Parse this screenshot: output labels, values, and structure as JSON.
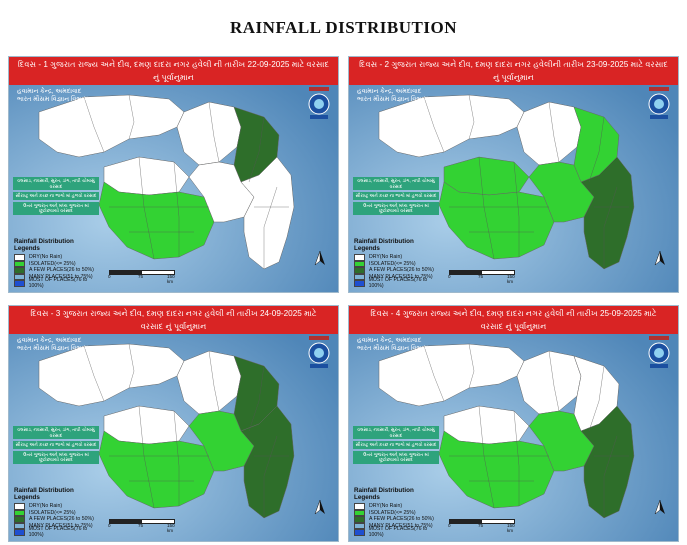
{
  "title": "RAINFALL DISTRIBUTION",
  "colors": {
    "dry": "#ffffff",
    "isolated": "#33d233",
    "a_few_places": "#2e6e2a",
    "many_places": "#7fb3d5",
    "most_of_places": "#1f4fd0",
    "header": "#d92424",
    "label_box": "#2ea37c"
  },
  "common": {
    "org_line1": "હવામાન કેન્દ્ર, અમદાવાદ",
    "org_line2": "ભારત મૌસમ વિજ્ઞાન વિભાગ",
    "label_1": "વલસાડ, નવસારી, સુરત, ડાંગ, તાપી ચોમાસું વરસાદ",
    "label_2": "સૌરાષ્ટ્ર અને કચ્છ ના ભાગો માં હળવો વરસાદ",
    "label_3": "ઉત્તર ગુજરાત અને મધ્ય ગુજરાત માં છૂટોછવાયો વરસાદ",
    "legend_title": "Rainfall Distribution Legends",
    "legend_items": [
      {
        "label": "DRY(No Rain)",
        "color": "#ffffff"
      },
      {
        "label": "ISOLATED(<= 25%)",
        "color": "#33d233"
      },
      {
        "label": "A FEW PLACES(26 to 50%)",
        "color": "#2e6e2a"
      },
      {
        "label": "MANY PLACES(51 to 75%)",
        "color": "#7fb3d5"
      },
      {
        "label": "MOST OF PLACES(76 to 100%)",
        "color": "#1f4fd0"
      }
    ],
    "scale_0": "0",
    "scale_75": "75",
    "scale_150": "150 km",
    "north": "N"
  },
  "panels": [
    {
      "header_line1": "દિવસ - 1 ગુજરાત રાજ્ય અને દીવ, દમણ દાદરા નગર હવેલી ની તારીખ 22-09-2025 માટે વરસાદ",
      "header_line2": "નું પૂર્વાનુમાન",
      "date": "22-09-2025",
      "day": 1,
      "regions": {
        "kutch": "dry",
        "saurashtra_north": "dry",
        "saurashtra_south": "isolated",
        "north_gujarat": "dry",
        "northeast": "a_few_places",
        "central": "dry",
        "south": "dry"
      }
    },
    {
      "header_line1": "દિવસ - 2 ગુજરાત રાજ્ય અને દીવ, દમણ દાદરા નગર હવેલીની તારીખ 23-09-2025 માટે વરસાદ",
      "header_line2": "નું પૂર્વાનુમાન",
      "date": "23-09-2025",
      "day": 2,
      "regions": {
        "kutch": "dry",
        "saurashtra_north": "isolated",
        "saurashtra_south": "isolated",
        "north_gujarat": "dry",
        "northeast": "isolated",
        "central": "isolated",
        "south": "a_few_places"
      }
    },
    {
      "header_line1": "દિવસ - 3 ગુજરાત રાજ્ય અને દીવ, દમણ દાદરા નગર હવેલી ની તારીખ 24-09-2025 માટે",
      "header_line2": "વરસાદ નું પૂર્વાનુમાન",
      "date": "24-09-2025",
      "day": 3,
      "regions": {
        "kutch": "dry",
        "saurashtra_north": "dry",
        "saurashtra_south": "isolated",
        "north_gujarat": "dry",
        "northeast": "a_few_places",
        "central": "isolated",
        "south": "a_few_places"
      }
    },
    {
      "header_line1": "દિવસ - 4 ગુજરાત રાજ્ય અને દીવ, દમણ દાદરા નગર હવેલી ની તારીખ 25-09-2025 માટે",
      "header_line2": "વરસાદ નું પૂર્વાનુમાન",
      "date": "25-09-2025",
      "day": 4,
      "regions": {
        "kutch": "dry",
        "saurashtra_north": "dry",
        "saurashtra_south": "isolated",
        "north_gujarat": "dry",
        "northeast": "dry",
        "central": "isolated",
        "south": "a_few_places"
      }
    }
  ]
}
